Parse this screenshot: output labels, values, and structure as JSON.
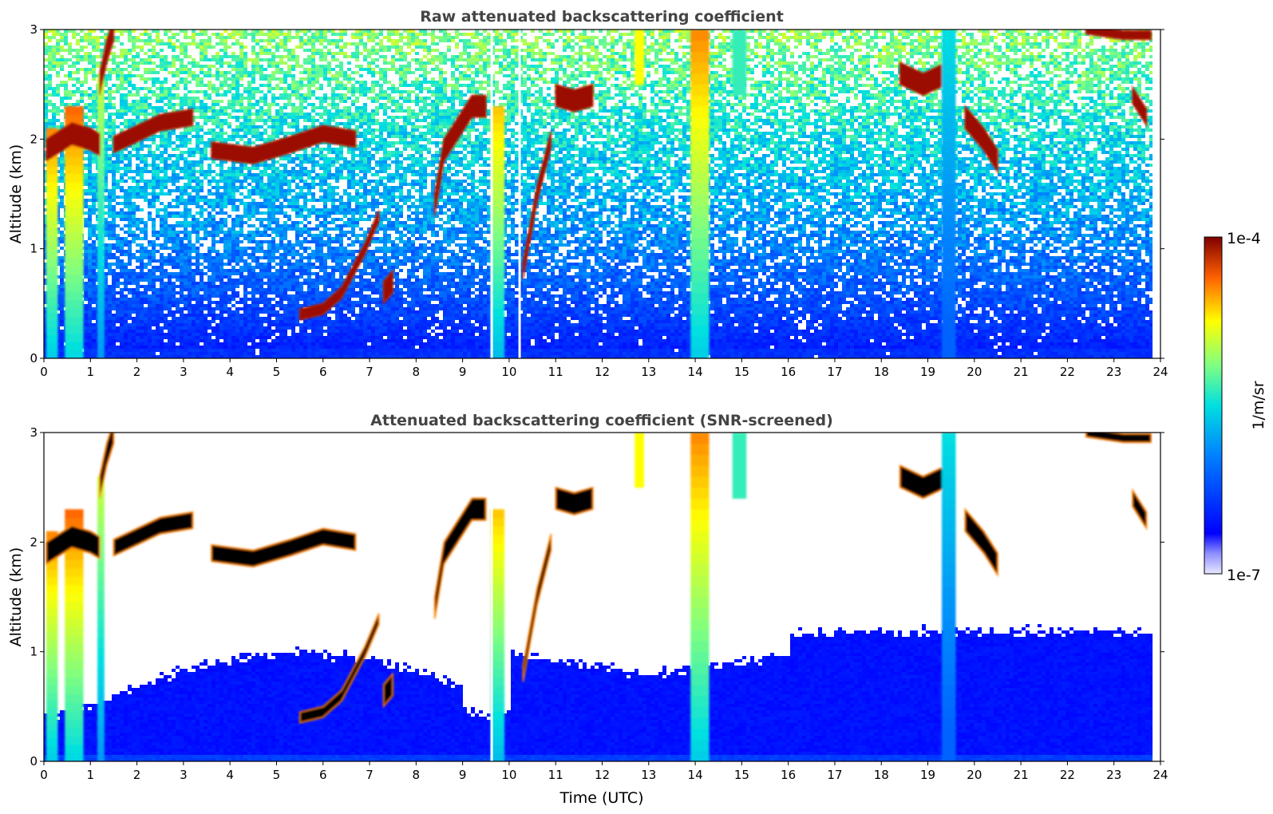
{
  "chart_data": [
    {
      "type": "heatmap",
      "title": "Raw attenuated backscattering coefficient",
      "ylabel": "Altitude (km)",
      "xlabel": "",
      "xlim": [
        0,
        24
      ],
      "ylim": [
        0,
        3
      ],
      "x_ticks": [
        "0",
        "1",
        "2",
        "3",
        "4",
        "5",
        "6",
        "7",
        "8",
        "9",
        "10",
        "11",
        "12",
        "13",
        "14",
        "15",
        "16",
        "17",
        "18",
        "19",
        "20",
        "21",
        "22",
        "23",
        "24"
      ],
      "y_ticks": [
        "0",
        "1",
        "2",
        "3"
      ],
      "noise_floor": "full",
      "features": [
        {
          "kind": "vertical_band",
          "x_start": 0.05,
          "x_end": 0.3,
          "alt_top": 2.1,
          "level": 0.85
        },
        {
          "kind": "vertical_band",
          "x_start": 0.45,
          "x_end": 0.85,
          "alt_top": 2.3,
          "level": 0.88
        },
        {
          "kind": "vertical_band",
          "x_start": 1.15,
          "x_end": 1.3,
          "alt_top": 2.6,
          "level": 0.7
        },
        {
          "kind": "cloud_layer",
          "points": [
            [
              0.05,
              1.9
            ],
            [
              0.6,
              2.05
            ],
            [
              1.0,
              2.0
            ],
            [
              1.2,
              1.95
            ]
          ],
          "thickness": 0.2
        },
        {
          "kind": "cloud_layer",
          "points": [
            [
              1.2,
              2.5
            ],
            [
              1.35,
              2.8
            ],
            [
              1.5,
              3.0
            ]
          ],
          "thickness": 0.2
        },
        {
          "kind": "cloud_layer",
          "points": [
            [
              1.5,
              1.95
            ],
            [
              2.0,
              2.05
            ],
            [
              2.5,
              2.15
            ],
            [
              3.2,
              2.2
            ]
          ],
          "thickness": 0.15
        },
        {
          "kind": "cloud_layer",
          "points": [
            [
              3.6,
              1.9
            ],
            [
              4.5,
              1.85
            ],
            [
              5.3,
              1.95
            ],
            [
              6.0,
              2.05
            ],
            [
              6.7,
              2.0
            ]
          ],
          "thickness": 0.15
        },
        {
          "kind": "cloud_layer",
          "points": [
            [
              5.5,
              0.4
            ],
            [
              6.0,
              0.45
            ],
            [
              6.4,
              0.6
            ],
            [
              6.9,
              1.0
            ],
            [
              7.2,
              1.3
            ]
          ],
          "thickness": 0.1
        },
        {
          "kind": "cloud_layer",
          "points": [
            [
              7.3,
              0.6
            ],
            [
              7.5,
              0.7
            ]
          ],
          "thickness": 0.2
        },
        {
          "kind": "cloud_layer",
          "points": [
            [
              8.4,
              1.4
            ],
            [
              8.6,
              1.9
            ],
            [
              8.9,
              2.1
            ],
            [
              9.2,
              2.3
            ],
            [
              9.5,
              2.3
            ]
          ],
          "thickness": 0.2
        },
        {
          "kind": "vertical_band",
          "x_start": 9.6,
          "x_end": 9.9,
          "alt_top": 2.3,
          "level": 0.8
        },
        {
          "kind": "cloud_layer",
          "points": [
            [
              10.3,
              0.8
            ],
            [
              10.6,
              1.5
            ],
            [
              10.9,
              2.0
            ]
          ],
          "thickness": 0.15
        },
        {
          "kind": "cloud_layer",
          "points": [
            [
              11.0,
              2.4
            ],
            [
              11.4,
              2.35
            ],
            [
              11.8,
              2.4
            ]
          ],
          "thickness": 0.2
        },
        {
          "kind": "vertical_band",
          "x_start": 12.7,
          "x_end": 12.9,
          "alt_top": 3.0,
          "alt_bottom": 2.5,
          "level": 0.75
        },
        {
          "kind": "vertical_band",
          "x_start": 13.9,
          "x_end": 14.3,
          "alt_top": 3.0,
          "level": 0.85
        },
        {
          "kind": "vertical_band",
          "x_start": 14.8,
          "x_end": 15.1,
          "alt_top": 3.0,
          "alt_bottom": 2.4,
          "level": 0.55
        },
        {
          "kind": "cloud_layer",
          "points": [
            [
              18.4,
              2.6
            ],
            [
              18.9,
              2.5
            ],
            [
              19.4,
              2.6
            ]
          ],
          "thickness": 0.2
        },
        {
          "kind": "vertical_band",
          "x_start": 19.3,
          "x_end": 19.6,
          "alt_top": 3.0,
          "level": 0.5
        },
        {
          "kind": "cloud_layer",
          "points": [
            [
              19.8,
              2.2
            ],
            [
              20.2,
              2.0
            ],
            [
              20.5,
              1.8
            ]
          ],
          "thickness": 0.2
        },
        {
          "kind": "cloud_layer",
          "points": [
            [
              22.4,
              3.0
            ],
            [
              23.2,
              2.95
            ],
            [
              23.8,
              2.95
            ]
          ],
          "thickness": 0.08
        },
        {
          "kind": "cloud_layer",
          "points": [
            [
              23.4,
              2.4
            ],
            [
              23.7,
              2.2
            ]
          ],
          "thickness": 0.15
        }
      ]
    },
    {
      "type": "heatmap",
      "title": "Attenuated backscattering coefficient (SNR-screened)",
      "ylabel": "Altitude (km)",
      "xlabel": "Time (UTC)",
      "xlim": [
        0,
        24
      ],
      "ylim": [
        0,
        3
      ],
      "x_ticks": [
        "0",
        "1",
        "2",
        "3",
        "4",
        "5",
        "6",
        "7",
        "8",
        "9",
        "10",
        "11",
        "12",
        "13",
        "14",
        "15",
        "16",
        "17",
        "18",
        "19",
        "20",
        "21",
        "22",
        "23",
        "24"
      ],
      "y_ticks": [
        "0",
        "1",
        "2",
        "3"
      ],
      "noise_floor": "screened",
      "features": "same as raw panel, cloud cores rendered black where saturated"
    }
  ],
  "colorbar": {
    "label": "1/m/sr",
    "max_label": "1e-4",
    "min_label": "1e-7",
    "colormap": "jet"
  }
}
